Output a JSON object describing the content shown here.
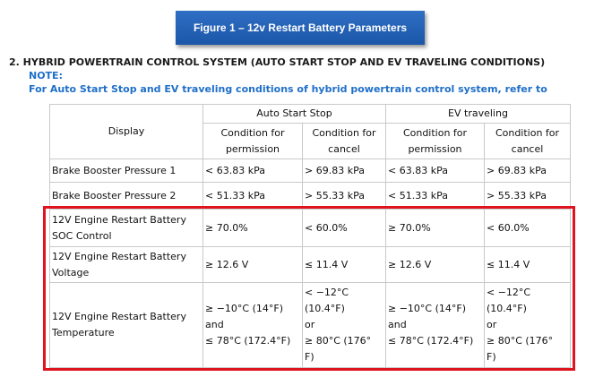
{
  "figure_button": "Figure 1 – 12v Restart Battery Parameters",
  "heading": "2. HYBRID POWERTRAIN CONTROL SYSTEM (AUTO START STOP AND EV TRAVELING CONDITIONS)",
  "note_label": "NOTE:",
  "note_text": "For Auto Start Stop and EV traveling conditions of hybrid powertrain control system, refer to",
  "table": {
    "header": {
      "display": "Display",
      "groups": [
        "Auto Start Stop",
        "EV traveling"
      ],
      "subheaders": [
        "Condition for\npermission",
        "Condition for\ncancel",
        "Condition for\npermission",
        "Condition for\ncancel"
      ]
    },
    "rows": [
      [
        "Brake Booster Pressure 1",
        "< 63.83 kPa",
        "> 69.83 kPa",
        "< 63.83 kPa",
        "> 69.83 kPa"
      ],
      [
        "Brake Booster Pressure 2",
        "< 51.33 kPa",
        "> 55.33 kPa",
        "< 51.33 kPa",
        "> 55.33 kPa"
      ],
      [
        "12V Engine Restart Battery\nSOC Control",
        "≥ 70.0%",
        "< 60.0%",
        "≥ 70.0%",
        "< 60.0%"
      ],
      [
        "12V Engine Restart Battery\nVoltage",
        "≥ 12.6 V",
        "≤ 11.4 V",
        "≥ 12.6 V",
        "≤ 11.4 V"
      ],
      [
        "12V Engine Restart Battery\nTemperature",
        "≥ −10°C (14°F)\nand\n≤ 78°C (172.4°F)",
        "< −12°C\n(10.4°F)\nor\n≥ 80°C (176°\nF)",
        "≥ −10°C (14°F)\nand\n≤ 78°C (172.4°F)",
        "< −12°C\n(10.4°F)\nor\n≥ 80°C (176°\nF)"
      ]
    ]
  }
}
